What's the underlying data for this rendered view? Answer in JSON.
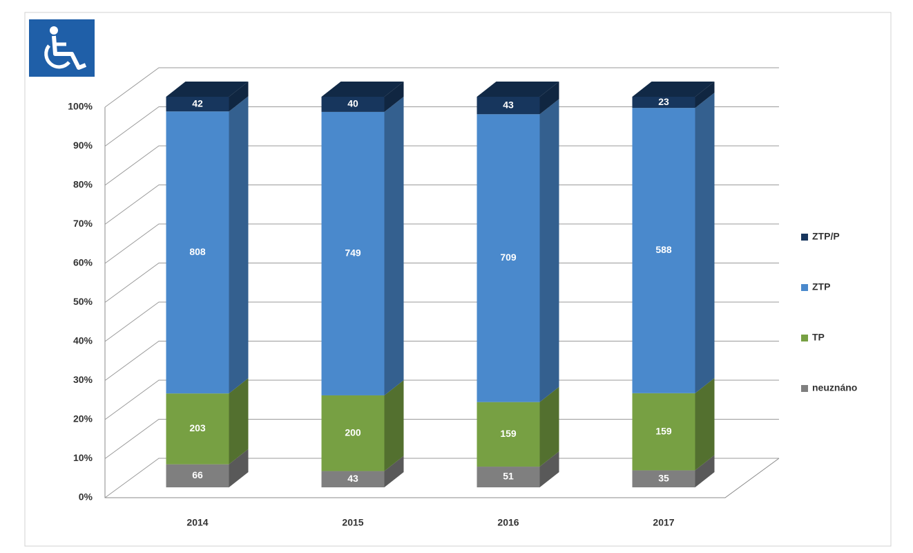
{
  "chart_data": {
    "type": "bar",
    "stacking": "percent",
    "categories": [
      "2014",
      "2015",
      "2016",
      "2017"
    ],
    "series": [
      {
        "name": "neuznáno",
        "color": "#7f7f7f",
        "values": [
          66,
          43,
          51,
          35
        ]
      },
      {
        "name": "TP",
        "color": "#77a043",
        "values": [
          203,
          200,
          159,
          159
        ]
      },
      {
        "name": "ZTP",
        "color": "#4a89cc",
        "values": [
          808,
          749,
          709,
          588
        ]
      },
      {
        "name": "ZTP/P",
        "color": "#17365d",
        "values": [
          42,
          40,
          43,
          23
        ]
      }
    ],
    "ylim": [
      0,
      100
    ],
    "yticks": [
      {
        "value": 0,
        "label": "0%"
      },
      {
        "value": 10,
        "label": "10%"
      },
      {
        "value": 20,
        "label": "20%"
      },
      {
        "value": 30,
        "label": "30%"
      },
      {
        "value": 40,
        "label": "40%"
      },
      {
        "value": 50,
        "label": "50%"
      },
      {
        "value": 60,
        "label": "60%"
      },
      {
        "value": 70,
        "label": "70%"
      },
      {
        "value": 80,
        "label": "80%"
      },
      {
        "value": 90,
        "label": "90%"
      },
      {
        "value": 100,
        "label": "100%"
      }
    ],
    "grid": true,
    "legend": "right"
  }
}
